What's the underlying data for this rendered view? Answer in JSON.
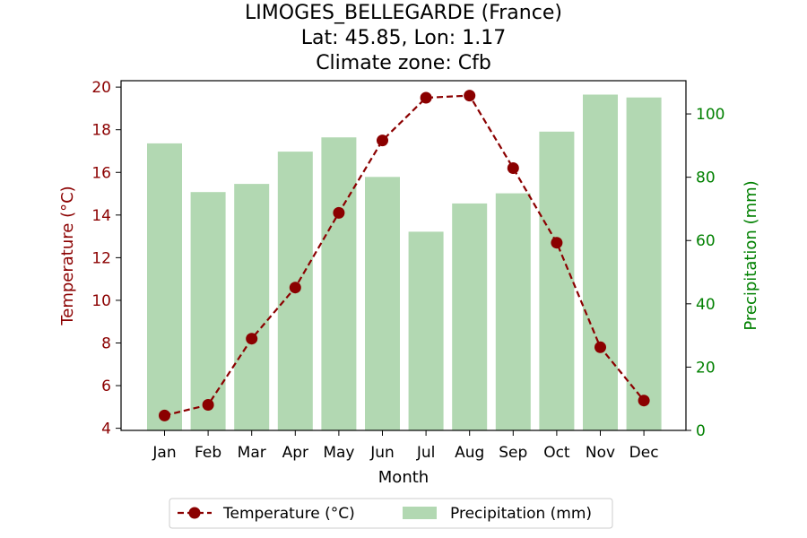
{
  "chart_data": {
    "type": "bar",
    "title_lines": [
      "LIMOGES_BELLEGARDE (France)",
      "Lat: 45.85, Lon: 1.17",
      "Climate zone: Cfb"
    ],
    "categories": [
      "Jan",
      "Feb",
      "Mar",
      "Apr",
      "May",
      "Jun",
      "Jul",
      "Aug",
      "Sep",
      "Oct",
      "Nov",
      "Dec"
    ],
    "xlabel": "Month",
    "ylabel_left": "Temperature (°C)",
    "ylabel_right": "Precipitation (mm)",
    "ylim_left": [
      3.9,
      20.3
    ],
    "ylim_right": [
      0,
      110.5
    ],
    "yticks_left": [
      4,
      6,
      8,
      10,
      12,
      14,
      16,
      18,
      20
    ],
    "yticks_right": [
      0,
      20,
      40,
      60,
      80,
      100
    ],
    "series": [
      {
        "name": "Temperature (°C)",
        "kind": "line",
        "axis": "left",
        "values": [
          4.6,
          5.1,
          8.2,
          10.6,
          14.1,
          17.5,
          19.5,
          19.6,
          16.2,
          12.7,
          7.8,
          5.3
        ]
      },
      {
        "name": "Precipitation (mm)",
        "kind": "bar",
        "axis": "right",
        "values": [
          90.7,
          75.3,
          77.9,
          88.1,
          92.6,
          80.1,
          62.8,
          71.7,
          74.9,
          94.4,
          106.1,
          105.2
        ]
      }
    ],
    "colors": {
      "temperature_line": "#8b0000",
      "temperature_marker": "#8b0000",
      "precip_bar": "#b2d8b2",
      "left_axis": "#8b0000",
      "right_axis": "#008000"
    },
    "grid": false,
    "legend_position": "bottom-center"
  }
}
